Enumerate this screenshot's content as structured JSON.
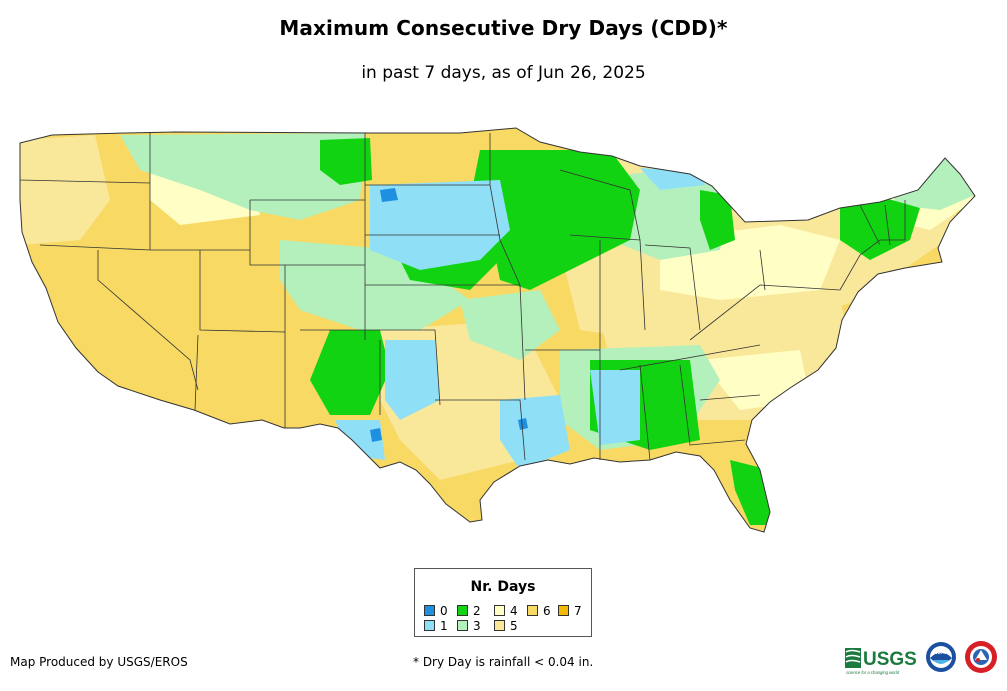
{
  "title": "Maximum Consecutive Dry Days (CDD)*",
  "subtitle": "in past 7 days, as of Jun 26, 2025",
  "legend": {
    "title": "Nr. Days",
    "items": [
      {
        "label": "0",
        "color": "#1f8fe0"
      },
      {
        "label": "1",
        "color": "#8fdff7"
      },
      {
        "label": "2",
        "color": "#11d311"
      },
      {
        "label": "3",
        "color": "#b4f0bc"
      },
      {
        "label": "4",
        "color": "#ffffc5"
      },
      {
        "label": "5",
        "color": "#fae89a"
      },
      {
        "label": "6",
        "color": "#f7d964"
      },
      {
        "label": "7",
        "color": "#f2b900"
      }
    ]
  },
  "credit": "Map Produced by USGS/EROS",
  "footnote": "* Dry Day is rainfall < 0.04 in.",
  "logos": {
    "usgs_text": "USGS",
    "usgs_tagline": "science for a changing world",
    "noaa_text": "NOAA"
  },
  "colors": {
    "state_border": "#333333",
    "background": "#ffffff"
  }
}
